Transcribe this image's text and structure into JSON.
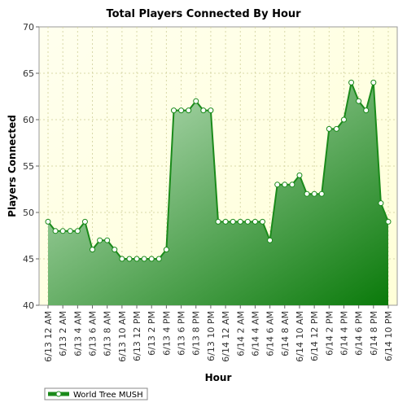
{
  "chart_data": {
    "type": "area",
    "title": "Total Players Connected By Hour",
    "xlabel": "Hour",
    "ylabel": "Players Connected",
    "ylim": [
      40,
      70
    ],
    "yticks": [
      40,
      45,
      50,
      55,
      60,
      65,
      70
    ],
    "grid": true,
    "legend_position": "bottom-left",
    "colors": {
      "line": "#1a8a1a",
      "fill_light": "#c8e6c8",
      "fill_dark": "#0a7a0a",
      "plot_bg": "#ffffe6",
      "grid": "#d8d8a8"
    },
    "x_tick_labels": [
      "6/13 12 AM",
      "6/13 2 AM",
      "6/13 4 AM",
      "6/13 6 AM",
      "6/13 8 AM",
      "6/13 10 AM",
      "6/13 12 PM",
      "6/13 2 PM",
      "6/13 4 PM",
      "6/13 6 PM",
      "6/13 8 PM",
      "6/13 10 PM",
      "6/14 12 AM",
      "6/14 2 AM",
      "6/14 4 AM",
      "6/14 6 AM",
      "6/14 8 AM",
      "6/14 10 AM",
      "6/14 12 PM",
      "6/14 2 PM",
      "6/14 4 PM",
      "6/14 6 PM",
      "6/14 8 PM",
      "6/14 10 PM"
    ],
    "series": [
      {
        "name": "World Tree MUSH",
        "values": [
          49,
          48,
          48,
          48,
          48,
          49,
          46,
          47,
          47,
          46,
          45,
          45,
          45,
          45,
          45,
          45,
          46,
          61,
          61,
          61,
          62,
          61,
          61,
          49,
          49,
          49,
          49,
          49,
          49,
          49,
          47,
          53,
          53,
          53,
          54,
          52,
          52,
          52,
          59,
          59,
          60,
          64,
          62,
          61,
          64,
          51,
          49
        ]
      }
    ]
  }
}
